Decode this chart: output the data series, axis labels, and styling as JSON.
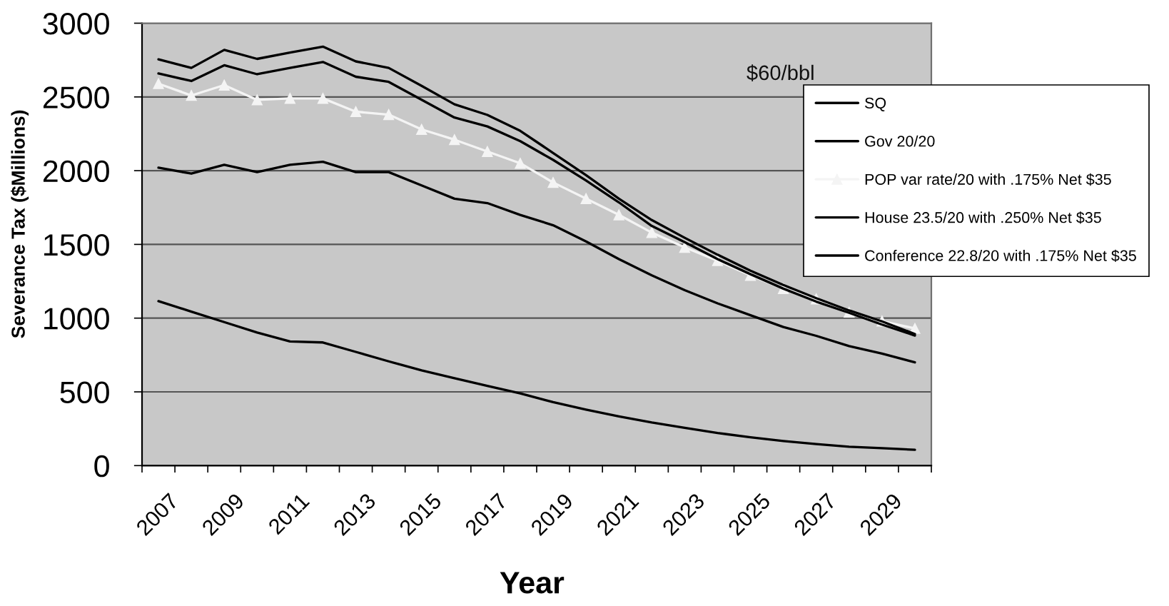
{
  "chart_data": {
    "type": "line",
    "xlabel": "Year",
    "ylabel": "Severance Tax ($Millions)",
    "annotations": [
      "$60/bbl"
    ],
    "categories": [
      "2007",
      null,
      "2009",
      null,
      "2011",
      null,
      "2013",
      null,
      "2015",
      null,
      "2017",
      null,
      "2019",
      null,
      "2021",
      null,
      "2023",
      null,
      "2025",
      null,
      "2027",
      null,
      "2029",
      null
    ],
    "ylim": [
      0,
      3000
    ],
    "yticks": [
      0,
      500,
      1000,
      1500,
      2000,
      2500,
      3000
    ],
    "grid": "y",
    "legend": "top right",
    "series": [
      {
        "name": "SQ",
        "color": "#000000",
        "values": [
          1115,
          1044,
          973,
          902,
          842,
          835,
          771,
          707,
          646,
          593,
          540,
          490,
          430,
          380,
          334,
          292,
          256,
          221,
          192,
          167,
          146,
          128,
          118,
          107
        ]
      },
      {
        "name": "Gov 20/20",
        "color": "#000000",
        "values": [
          2020,
          1980,
          2040,
          1990,
          2040,
          2060,
          1990,
          1990,
          1900,
          1810,
          1780,
          1700,
          1630,
          1520,
          1400,
          1290,
          1190,
          1100,
          1020,
          940,
          880,
          810,
          760,
          700
        ]
      },
      {
        "name": "POP var rate/20 with .175% Net $35",
        "color": "#f4f4f4",
        "marker": "triangle",
        "values": [
          2590,
          2510,
          2580,
          2480,
          2490,
          2490,
          2400,
          2380,
          2280,
          2210,
          2130,
          2050,
          1920,
          1810,
          1700,
          1580,
          1480,
          1390,
          1290,
          1200,
          1130,
          1040,
          980,
          930
        ]
      },
      {
        "name": "House 23.5/20 with .250% Net $35",
        "color": "#000000",
        "values": [
          2755,
          2697,
          2819,
          2758,
          2801,
          2841,
          2741,
          2697,
          2575,
          2450,
          2378,
          2270,
          2120,
          1970,
          1810,
          1665,
          1545,
          1430,
          1322,
          1225,
          1135,
          1052,
          978,
          892
        ]
      },
      {
        "name": "Conference 22.8/20 with .175% Net $35",
        "color": "#000000",
        "values": [
          2659,
          2608,
          2715,
          2654,
          2697,
          2737,
          2637,
          2602,
          2481,
          2360,
          2300,
          2200,
          2073,
          1933,
          1785,
          1625,
          1515,
          1400,
          1298,
          1200,
          1112,
          1036,
          956,
          882
        ]
      }
    ]
  }
}
